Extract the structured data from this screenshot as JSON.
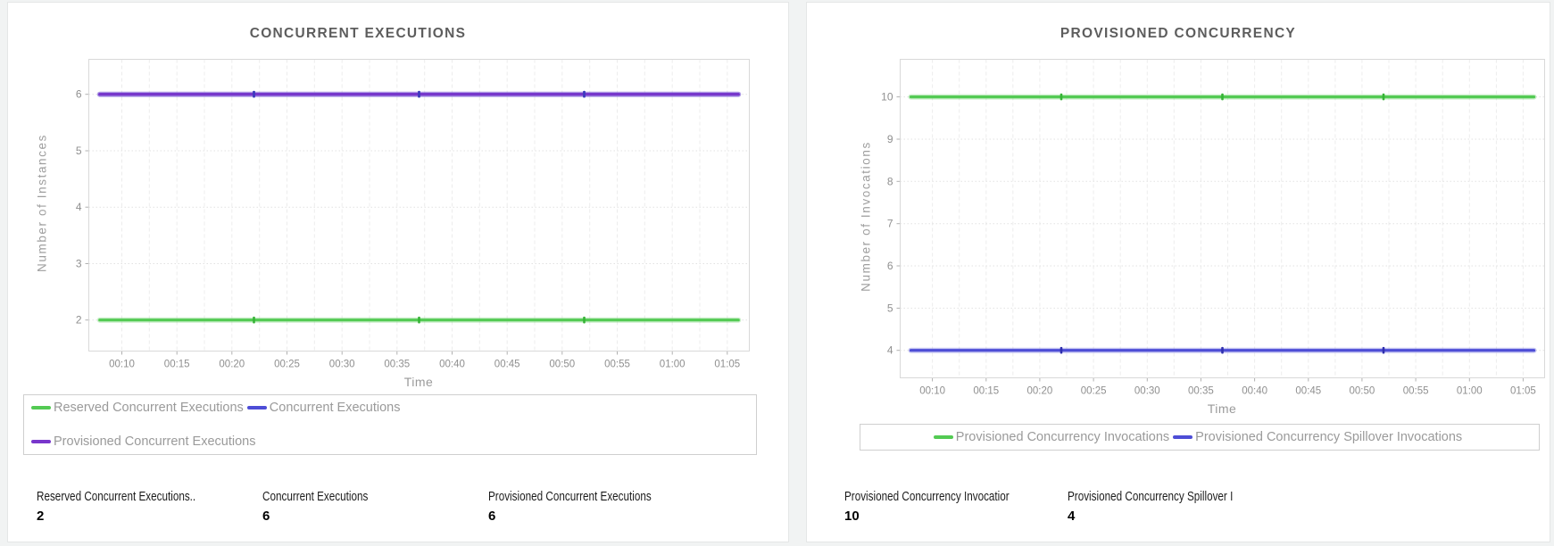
{
  "chart_data": [
    {
      "type": "line",
      "title": "CONCURRENT EXECUTIONS",
      "xlabel": "Time",
      "ylabel": "Number of Instances",
      "x_ticks": [
        "00:10",
        "00:15",
        "00:20",
        "00:25",
        "00:30",
        "00:35",
        "00:40",
        "00:45",
        "00:50",
        "00:55",
        "01:00",
        "01:05"
      ],
      "x_tick_minutes": [
        10,
        15,
        20,
        25,
        30,
        35,
        40,
        45,
        50,
        55,
        60,
        65
      ],
      "x_domain_minutes": [
        7,
        67
      ],
      "x_minor_grid_step_minutes": 2.5,
      "y_ticks": [
        2,
        3,
        4,
        5,
        6
      ],
      "ylim": [
        1.45,
        6.62
      ],
      "grid": true,
      "legend_position": "bottom",
      "series": [
        {
          "name": "Reserved Concurrent Executions",
          "value": 2,
          "color": "#53ca53",
          "marker_color": "#35b335"
        },
        {
          "name": "Concurrent Executions",
          "value": 6,
          "color": "#4d4dd6",
          "marker_color": "#2f2fae"
        },
        {
          "name": "Provisioned Concurrent Executions",
          "value": 6,
          "color": "#7836cb",
          "marker_color": "#3a3abd"
        }
      ],
      "marker_minutes": [
        22,
        37,
        52
      ],
      "data_minutes": [
        8,
        66
      ],
      "stats": [
        {
          "label": "Reserved Concurrent Executions..",
          "value": "2"
        },
        {
          "label": "Concurrent Executions",
          "value": "6"
        },
        {
          "label": "Provisioned Concurrent Executions",
          "value": "6"
        }
      ]
    },
    {
      "type": "line",
      "title": "PROVISIONED CONCURRENCY",
      "xlabel": "Time",
      "ylabel": "Number of Invocations",
      "x_ticks": [
        "00:10",
        "00:15",
        "00:20",
        "00:25",
        "00:30",
        "00:35",
        "00:40",
        "00:45",
        "00:50",
        "00:55",
        "01:00",
        "01:05"
      ],
      "x_tick_minutes": [
        10,
        15,
        20,
        25,
        30,
        35,
        40,
        45,
        50,
        55,
        60,
        65
      ],
      "x_domain_minutes": [
        7,
        67
      ],
      "x_minor_grid_step_minutes": 2.5,
      "y_ticks": [
        4,
        5,
        6,
        7,
        8,
        9,
        10
      ],
      "ylim": [
        3.35,
        10.89
      ],
      "grid": true,
      "legend_position": "bottom",
      "series": [
        {
          "name": "Provisioned Concurrency Invocations",
          "value": 10,
          "color": "#53ca53",
          "marker_color": "#35b335"
        },
        {
          "name": "Provisioned Concurrency Spillover Invocations",
          "value": 4,
          "color": "#4d4dd6",
          "marker_color": "#2f2fae"
        }
      ],
      "marker_minutes": [
        22,
        37,
        52
      ],
      "data_minutes": [
        8,
        66
      ],
      "stats": [
        {
          "label": "Provisioned Concurrency Invocatior",
          "value": "10"
        },
        {
          "label": "Provisioned Concurrency Spillover I",
          "value": "4"
        }
      ]
    }
  ]
}
